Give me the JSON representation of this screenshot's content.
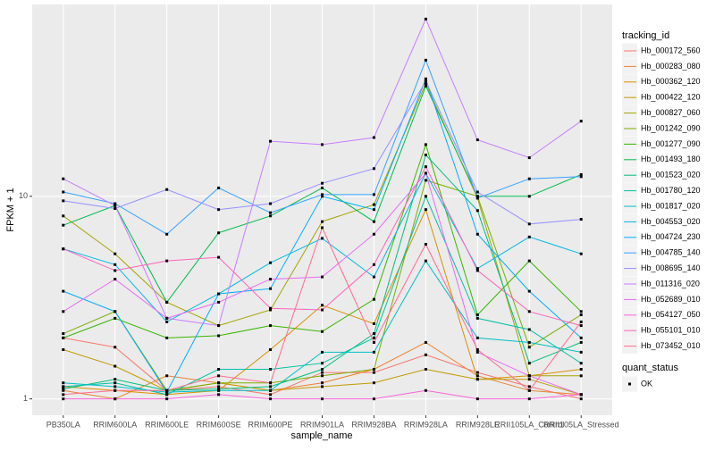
{
  "chart_data": {
    "type": "line",
    "x_label": "sample_name",
    "y_label": "FPKM + 1",
    "y_scale": "log",
    "grid": true,
    "categories": [
      "PB350LA",
      "RRIM600LA",
      "RRIM600LE",
      "RRIM600SE",
      "RRIM600PE",
      "RRIM901LA",
      "RRIM928BA",
      "RRIM928LA",
      "RRIM928LE",
      "RRII105LA_Control",
      "RRII105LA_Stressed"
    ],
    "ylim": [
      0.83,
      88.5
    ],
    "yticks": [
      1,
      10
    ],
    "legend": {
      "title": "tracking_id",
      "position": "right"
    },
    "shape_legend": {
      "title": "quant_status",
      "items": [
        "OK"
      ],
      "color": "#000000"
    },
    "series": [
      {
        "name": "Hb_000172_560",
        "color": "#F8766D",
        "values": [
          2,
          1.8,
          1.1,
          1.15,
          1.05,
          1.35,
          1.35,
          1.65,
          1.35,
          1.15,
          1.0
        ]
      },
      {
        "name": "Hb_000283_080",
        "color": "#EA8331",
        "values": [
          1.1,
          1.0,
          1.3,
          1.2,
          1.1,
          1.2,
          1.4,
          1.9,
          1.3,
          1.1,
          1.05
        ]
      },
      {
        "name": "Hb_000362_120",
        "color": "#D89000",
        "values": [
          1.15,
          1.1,
          1.05,
          1.1,
          1.75,
          2.9,
          2.35,
          8.6,
          1.25,
          1.3,
          1.4
        ]
      },
      {
        "name": "Hb_000422_120",
        "color": "#C09B00",
        "values": [
          1.75,
          1.45,
          1.1,
          1.2,
          1.1,
          1.15,
          1.2,
          1.4,
          1.25,
          1.25,
          1.05
        ]
      },
      {
        "name": "Hb_000827_060",
        "color": "#A3A500",
        "values": [
          8,
          5.2,
          3.0,
          2.3,
          2.75,
          7.5,
          9.1,
          36,
          9.8,
          1.3,
          1.3
        ]
      },
      {
        "name": "Hb_001242_090",
        "color": "#7CAE00",
        "values": [
          2.1,
          2.7,
          1.1,
          1.2,
          1.2,
          1.3,
          1.4,
          12,
          10,
          1.8,
          2.6
        ]
      },
      {
        "name": "Hb_001277_090",
        "color": "#39B600",
        "values": [
          2,
          2.5,
          2.0,
          2.05,
          2.3,
          2.15,
          3.1,
          18,
          2.6,
          4.8,
          2.7
        ]
      },
      {
        "name": "Hb_001493_180",
        "color": "#00BB4E",
        "values": [
          7.2,
          9,
          3.0,
          6.6,
          8,
          11,
          7.5,
          35,
          10,
          10,
          12.8
        ]
      },
      {
        "name": "Hb_001523_020",
        "color": "#00BF7D",
        "values": [
          1.12,
          1.25,
          1.1,
          1.12,
          1.15,
          1.4,
          2.1,
          16,
          8.5,
          1.5,
          1.9
        ]
      },
      {
        "name": "Hb_001780_120",
        "color": "#00C1A3",
        "values": [
          1.15,
          1.2,
          1.05,
          1.4,
          1.4,
          1.5,
          2.0,
          10,
          2.5,
          2.2,
          1.5
        ]
      },
      {
        "name": "Hb_001817_020",
        "color": "#00BFC4",
        "values": [
          1.2,
          1.15,
          1.08,
          1.1,
          1.1,
          1.7,
          1.7,
          4.8,
          2,
          1.9,
          1.7
        ]
      },
      {
        "name": "Hb_004553_020",
        "color": "#00BAE0",
        "values": [
          5.5,
          4.6,
          2.4,
          3.3,
          4.7,
          6.2,
          4,
          13,
          4.4,
          6.3,
          5.2
        ]
      },
      {
        "name": "Hb_004724_230",
        "color": "#00B0F6",
        "values": [
          3.4,
          2.7,
          1.08,
          3.3,
          3.5,
          10,
          8.6,
          38,
          6.5,
          3.4,
          2.0
        ]
      },
      {
        "name": "Hb_004785_140",
        "color": "#35A2FF",
        "values": [
          10.5,
          9.2,
          6.5,
          11,
          8.3,
          10.2,
          10.2,
          47,
          9.8,
          12.2,
          12.5
        ]
      },
      {
        "name": "Hb_008695_140",
        "color": "#9590FF",
        "values": [
          9.5,
          8.7,
          10.8,
          8.6,
          9.2,
          11.6,
          13.7,
          37,
          10.5,
          7.3,
          7.7
        ]
      },
      {
        "name": "Hb_011316_020",
        "color": "#C77CFF",
        "values": [
          12.2,
          9,
          2.5,
          2.3,
          18.7,
          18,
          19.5,
          75,
          19,
          15.5,
          23.5
        ]
      },
      {
        "name": "Hb_052689_010",
        "color": "#E76BF3",
        "values": [
          2.7,
          3.9,
          2.5,
          3.0,
          3.9,
          4,
          6.5,
          13,
          1.7,
          1.3,
          1.05
        ]
      },
      {
        "name": "Hb_054127_050",
        "color": "#FA62DB",
        "values": [
          1.0,
          1.0,
          1.0,
          1.05,
          1.0,
          1.0,
          1.0,
          1.1,
          1.0,
          1.0,
          1.05
        ]
      },
      {
        "name": "Hb_055101_010",
        "color": "#FF62BC",
        "values": [
          5.5,
          4.3,
          4.8,
          5,
          2.8,
          2.75,
          4.6,
          14,
          4.3,
          2.7,
          2.3
        ]
      },
      {
        "name": "Hb_073452_010",
        "color": "#FF6C91",
        "values": [
          1.05,
          1.1,
          1.1,
          1.3,
          1.2,
          7.0,
          1.9,
          5.8,
          1.75,
          1.1,
          2.4
        ]
      }
    ]
  }
}
